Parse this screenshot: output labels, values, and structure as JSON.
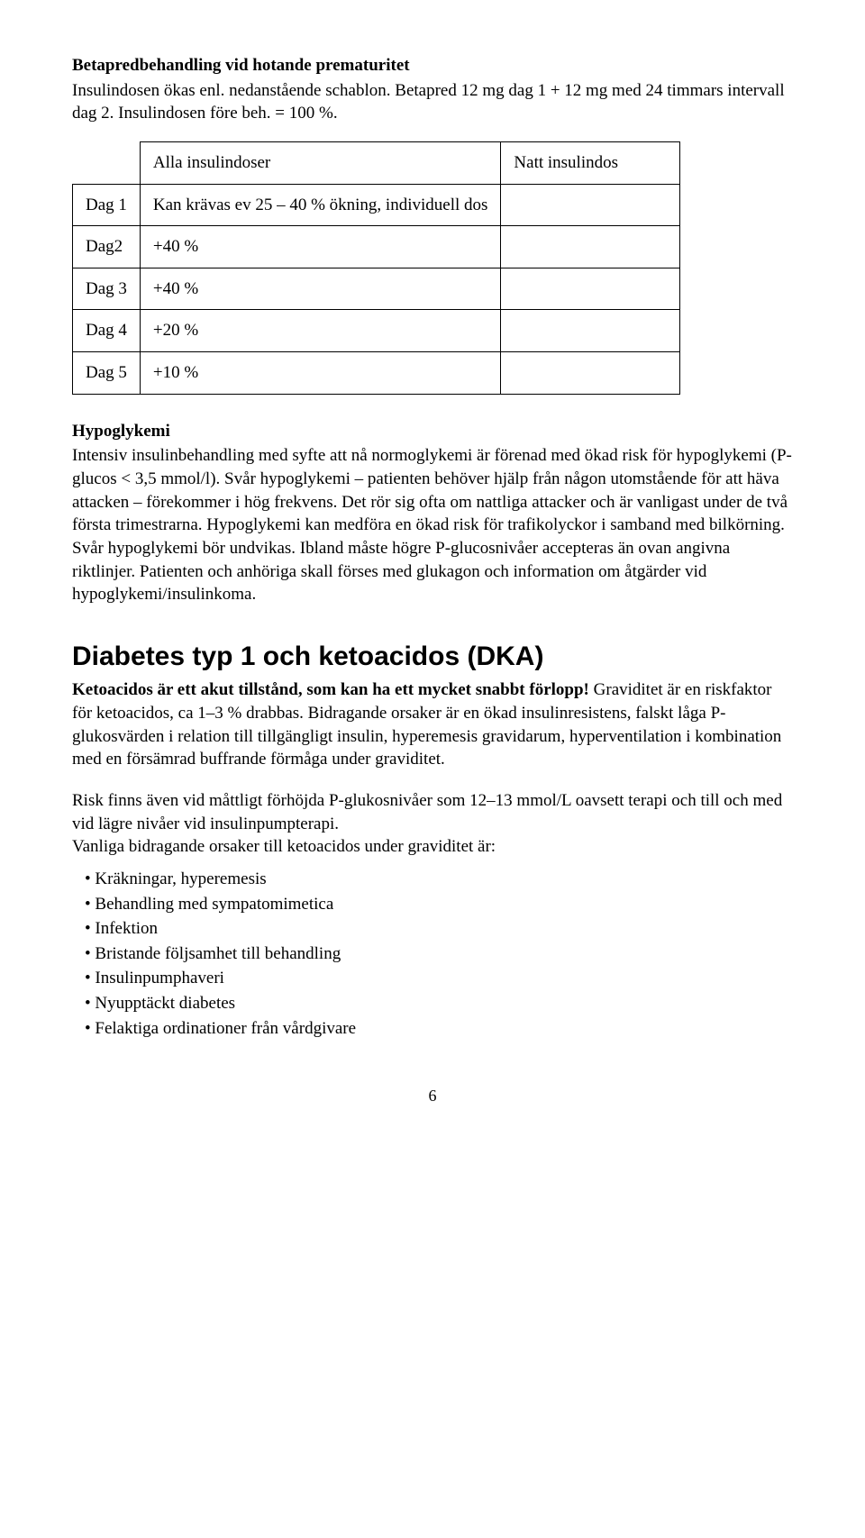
{
  "section1": {
    "title": "Betapredbehandling vid hotande prematuritet",
    "text": "Insulindosen ökas enl. nedanstående schablon. Betapred 12 mg dag 1 + 12 mg med 24 timmars intervall dag 2. Insulindosen före beh. = 100 %."
  },
  "doseTable": {
    "header": {
      "col1_blank": "",
      "col2": "Alla insulindoser",
      "col3": "Natt insulindos"
    },
    "rows": [
      {
        "day": "Dag 1",
        "dose": "Kan krävas ev 25 – 40 % ökning, individuell dos",
        "natt": ""
      },
      {
        "day": "Dag2",
        "dose": "+40 %",
        "natt": ""
      },
      {
        "day": "Dag 3",
        "dose": "+40 %",
        "natt": ""
      },
      {
        "day": "Dag 4",
        "dose": "+20 %",
        "natt": ""
      },
      {
        "day": "Dag 5",
        "dose": "+10 %",
        "natt": ""
      }
    ]
  },
  "hypo": {
    "title": "Hypoglykemi",
    "text": "Intensiv insulinbehandling med syfte att nå normoglykemi är förenad med ökad risk för hypoglykemi (P-glucos < 3,5 mmol/l). Svår hypoglykemi – patienten behöver hjälp från någon utomstående för att häva attacken – förekommer i hög frekvens. Det rör sig ofta om nattliga attacker och är vanligast under de två första trimestrarna. Hypoglykemi kan medföra en ökad risk för trafikolyckor i samband med bilkörning. Svår hypoglykemi bör undvikas. Ibland måste högre P-glucosnivåer accepteras än ovan angivna riktlinjer. Patienten och anhöriga skall förses med glukagon och information om åtgärder vid hypoglykemi/insulinkoma."
  },
  "dka": {
    "heading": "Diabetes typ 1 och ketoacidos (DKA)",
    "lead_bold": "Ketoacidos är ett akut tillstånd, som kan ha ett mycket snabbt förlopp!",
    "para1": "Graviditet är en riskfaktor för ketoacidos, ca 1–3 % drabbas. Bidragande orsaker är en ökad insulinresistens, falskt låga P-glukosvärden i relation till tillgängligt insulin, hyperemesis gravidarum, hyperventilation i kombination med en försämrad buffrande förmåga under graviditet.",
    "para2a": "Risk finns även vid måttligt förhöjda P-glukosnivåer som 12–13 mmol/L oavsett terapi och till och med vid lägre nivåer vid insulinpumpterapi.",
    "para2b": "Vanliga bidragande orsaker till ketoacidos under graviditet är:",
    "bullets": [
      "Kräkningar, hyperemesis",
      "Behandling med sympatomimetica",
      "Infektion",
      "Bristande följsamhet till behandling",
      "Insulinpumphaveri",
      "Nyupptäckt diabetes",
      "Felaktiga ordinationer från vårdgivare"
    ]
  },
  "pageNumber": "6"
}
